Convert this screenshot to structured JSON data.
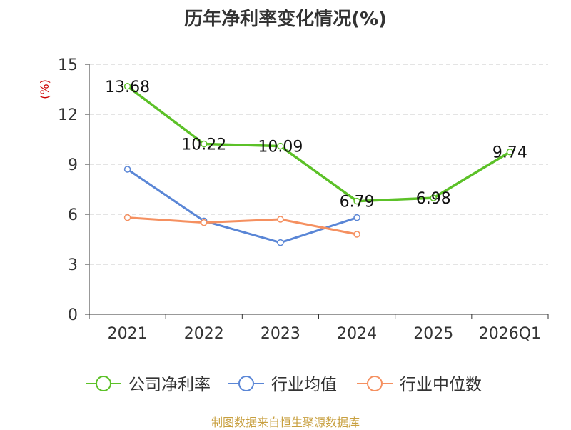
{
  "chart_data": {
    "type": "line",
    "title": "历年净利率变化情况(%)",
    "ylabel": "(%)",
    "xlabel": "",
    "categories": [
      "2021",
      "2022",
      "2023",
      "2024",
      "2025",
      "2026Q1"
    ],
    "ylim": [
      0,
      15
    ],
    "yticks": [
      0,
      3,
      6,
      9,
      12,
      15
    ],
    "grid": true,
    "legend_position": "bottom",
    "series": [
      {
        "name": "公司净利率",
        "color": "#5cc128",
        "values": [
          13.68,
          10.22,
          10.09,
          6.79,
          6.98,
          9.74
        ],
        "labels": [
          "13.68",
          "10.22",
          "10.09",
          "6.79",
          "6.98",
          "9.74"
        ]
      },
      {
        "name": "行业均值",
        "color": "#5a86d6",
        "values": [
          8.7,
          5.6,
          4.3,
          5.8,
          null,
          null
        ]
      },
      {
        "name": "行业中位数",
        "color": "#f59060",
        "values": [
          5.8,
          5.5,
          5.7,
          4.8,
          null,
          null
        ]
      }
    ]
  },
  "source": "制图数据来自恒生聚源数据库"
}
